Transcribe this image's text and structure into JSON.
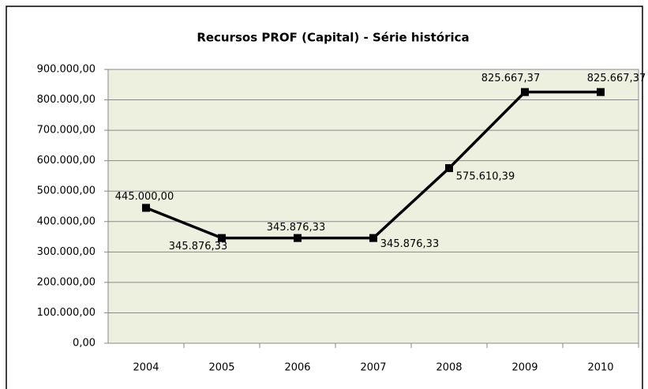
{
  "chart_data": {
    "type": "line",
    "title": "Recursos PROF (Capital) - Série histórica",
    "categories": [
      "2004",
      "2005",
      "2006",
      "2007",
      "2008",
      "2009",
      "2010"
    ],
    "series": [
      {
        "name": "Recursos PROF (Capital)",
        "color": "#000000",
        "values": [
          445000,
          345876.33,
          345876.33,
          345876.33,
          575610.39,
          825667.37,
          825667.37
        ],
        "value_labels": [
          "445.000,00",
          "345.876,33",
          "345.876,33",
          "345.876,33",
          "575.610,39",
          "825.667,37",
          "825.667,37"
        ]
      }
    ],
    "ylim": [
      0,
      900000
    ],
    "yticks": [
      {
        "value": 0,
        "label": "0,00"
      },
      {
        "value": 100000,
        "label": "100.000,00"
      },
      {
        "value": 200000,
        "label": "200.000,00"
      },
      {
        "value": 300000,
        "label": "300.000,00"
      },
      {
        "value": 400000,
        "label": "400.000,00"
      },
      {
        "value": 500000,
        "label": "500.000,00"
      },
      {
        "value": 600000,
        "label": "600.000,00"
      },
      {
        "value": 700000,
        "label": "700.000,00"
      },
      {
        "value": 800000,
        "label": "800.000,00"
      },
      {
        "value": 900000,
        "label": "900.000,00"
      }
    ],
    "grid": true,
    "plot_background": "#eef0df"
  }
}
